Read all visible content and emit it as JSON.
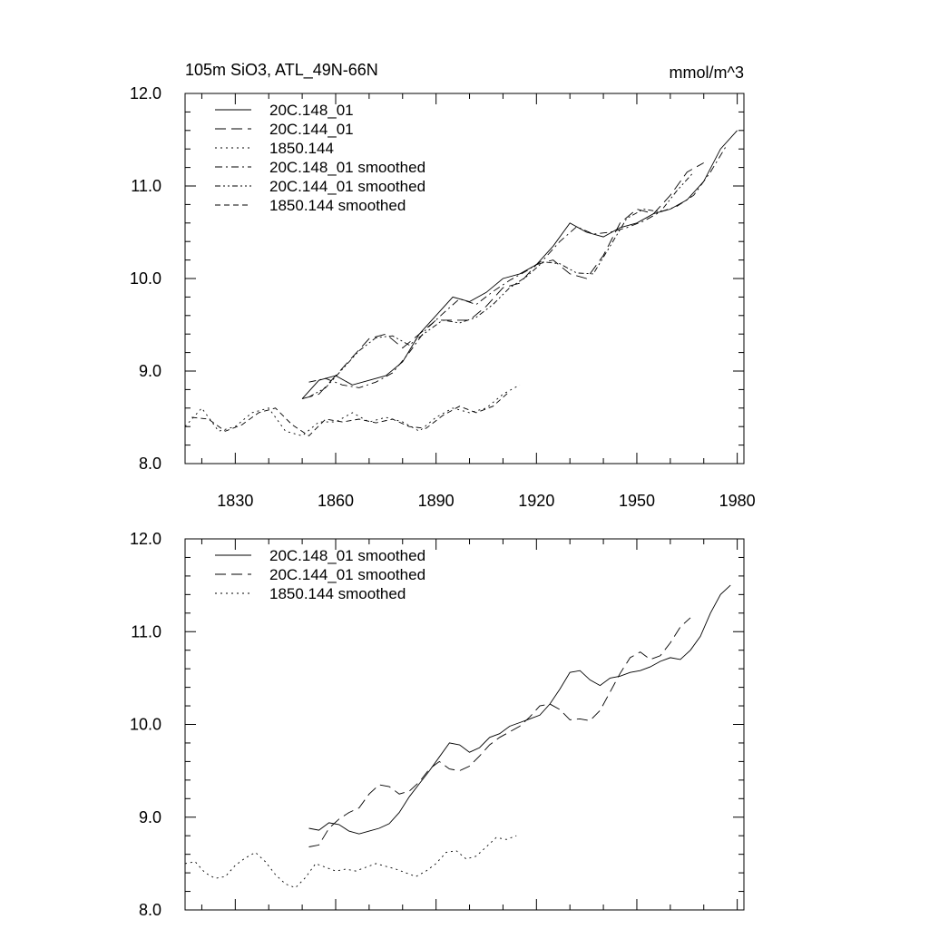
{
  "chart_data": [
    {
      "type": "line",
      "title": "105m SiO3, ATL_49N-66N",
      "units_label": "mmol/m^3",
      "xlabel": "",
      "ylabel": "",
      "xlim": [
        1815,
        1982
      ],
      "ylim": [
        8.0,
        12.0
      ],
      "xticks": [
        1830,
        1860,
        1890,
        1920,
        1950,
        1980
      ],
      "xtick_labels": [
        "1830",
        "1860",
        "1890",
        "1920",
        "1950",
        "1980"
      ],
      "yticks": [
        8.0,
        9.0,
        10.0,
        11.0,
        12.0
      ],
      "ytick_labels": [
        "8.0",
        "9.0",
        "10.0",
        "11.0",
        "12.0"
      ],
      "legend": [
        "20C.148_01",
        "20C.144_01",
        "1850.144",
        "20C.148_01 smoothed",
        "20C.144_01 smoothed",
        "1850.144 smoothed"
      ],
      "series": [
        {
          "name": "20C.148_01",
          "dash": "solid",
          "x": [
            1850,
            1855,
            1860,
            1865,
            1870,
            1875,
            1880,
            1885,
            1890,
            1895,
            1900,
            1905,
            1910,
            1915,
            1920,
            1925,
            1930,
            1935,
            1940,
            1945,
            1950,
            1955,
            1960,
            1965,
            1970,
            1975,
            1980
          ],
          "y": [
            8.7,
            8.9,
            8.95,
            8.85,
            8.9,
            8.95,
            9.1,
            9.4,
            9.6,
            9.8,
            9.75,
            9.85,
            10.0,
            10.05,
            10.15,
            10.35,
            10.6,
            10.5,
            10.45,
            10.55,
            10.6,
            10.7,
            10.75,
            10.85,
            11.05,
            11.4,
            11.6
          ]
        },
        {
          "name": "20C.144_01",
          "dash": "longdash",
          "x": [
            1850,
            1855,
            1860,
            1865,
            1870,
            1875,
            1880,
            1885,
            1890,
            1895,
            1900,
            1905,
            1910,
            1915,
            1920,
            1925,
            1930,
            1935,
            1940,
            1945,
            1950,
            1955,
            1960,
            1965,
            1970
          ],
          "y": [
            8.7,
            8.75,
            8.95,
            9.15,
            9.35,
            9.4,
            9.25,
            9.4,
            9.55,
            9.55,
            9.55,
            9.7,
            9.9,
            9.95,
            10.15,
            10.2,
            10.05,
            10.0,
            10.25,
            10.6,
            10.75,
            10.7,
            10.9,
            11.15,
            11.25
          ]
        },
        {
          "name": "1850.144",
          "dash": "dotted",
          "x": [
            1815,
            1820,
            1825,
            1830,
            1835,
            1840,
            1845,
            1850,
            1855,
            1860,
            1865,
            1870,
            1875,
            1880,
            1885,
            1890,
            1895,
            1900,
            1905,
            1910,
            1915
          ],
          "y": [
            8.4,
            8.6,
            8.35,
            8.4,
            8.55,
            8.6,
            8.35,
            8.3,
            8.45,
            8.45,
            8.55,
            8.45,
            8.5,
            8.45,
            8.35,
            8.5,
            8.6,
            8.55,
            8.6,
            8.75,
            8.85
          ]
        },
        {
          "name": "20C.148_01 smoothed",
          "dash": "dashdot",
          "x": [
            1852,
            1857,
            1862,
            1867,
            1872,
            1877,
            1882,
            1887,
            1892,
            1897,
            1902,
            1907,
            1912,
            1917,
            1922,
            1927,
            1932,
            1937,
            1942,
            1947,
            1952,
            1957,
            1962,
            1967,
            1972,
            1977
          ],
          "y": [
            8.88,
            8.92,
            8.85,
            8.82,
            8.88,
            8.98,
            9.2,
            9.45,
            9.62,
            9.78,
            9.72,
            9.86,
            9.98,
            10.08,
            10.2,
            10.4,
            10.56,
            10.48,
            10.5,
            10.55,
            10.62,
            10.72,
            10.78,
            10.9,
            11.15,
            11.45
          ]
        },
        {
          "name": "20C.144_01 smoothed",
          "dash": "dashdotdot",
          "x": [
            1852,
            1857,
            1862,
            1867,
            1872,
            1877,
            1882,
            1887,
            1892,
            1897,
            1902,
            1907,
            1912,
            1917,
            1922,
            1927,
            1932,
            1937,
            1942,
            1947,
            1952,
            1957,
            1962,
            1967
          ],
          "y": [
            8.72,
            8.82,
            9.02,
            9.22,
            9.36,
            9.38,
            9.28,
            9.42,
            9.55,
            9.52,
            9.58,
            9.72,
            9.9,
            10.02,
            10.18,
            10.16,
            10.06,
            10.05,
            10.35,
            10.65,
            10.75,
            10.72,
            10.95,
            11.15
          ]
        },
        {
          "name": "1850.144 smoothed",
          "dash": "medium",
          "x": [
            1817,
            1822,
            1827,
            1832,
            1837,
            1842,
            1847,
            1852,
            1857,
            1862,
            1867,
            1872,
            1877,
            1882,
            1887,
            1892,
            1897,
            1902,
            1907,
            1912
          ],
          "y": [
            8.5,
            8.48,
            8.35,
            8.42,
            8.55,
            8.6,
            8.42,
            8.3,
            8.48,
            8.45,
            8.48,
            8.44,
            8.48,
            8.4,
            8.38,
            8.52,
            8.62,
            8.55,
            8.62,
            8.78
          ]
        }
      ]
    },
    {
      "type": "line",
      "title": "",
      "xlabel": "",
      "ylabel": "",
      "xlim": [
        1815,
        1982
      ],
      "ylim": [
        8.0,
        12.0
      ],
      "xticks": [
        1830,
        1860,
        1890,
        1920,
        1950,
        1980
      ],
      "yticks": [
        8.0,
        9.0,
        10.0,
        11.0,
        12.0
      ],
      "ytick_labels": [
        "8.0",
        "9.0",
        "10.0",
        "11.0",
        "12.0"
      ],
      "legend": [
        "20C.148_01 smoothed",
        "20C.144_01 smoothed",
        "1850.144 smoothed"
      ],
      "series": [
        {
          "name": "20C.148_01 smoothed",
          "dash": "solid",
          "x": [
            1852,
            1855,
            1858,
            1861,
            1864,
            1867,
            1870,
            1873,
            1876,
            1879,
            1882,
            1885,
            1888,
            1891,
            1894,
            1897,
            1900,
            1903,
            1906,
            1909,
            1912,
            1915,
            1918,
            1921,
            1924,
            1927,
            1930,
            1933,
            1936,
            1939,
            1942,
            1945,
            1948,
            1951,
            1954,
            1957,
            1960,
            1963,
            1966,
            1969,
            1972,
            1975,
            1978
          ],
          "y": [
            8.88,
            8.86,
            8.94,
            8.92,
            8.85,
            8.82,
            8.85,
            8.88,
            8.93,
            9.05,
            9.22,
            9.36,
            9.5,
            9.65,
            9.8,
            9.78,
            9.7,
            9.75,
            9.86,
            9.9,
            9.98,
            10.02,
            10.06,
            10.1,
            10.22,
            10.38,
            10.56,
            10.58,
            10.48,
            10.42,
            10.5,
            10.52,
            10.56,
            10.58,
            10.62,
            10.68,
            10.72,
            10.7,
            10.8,
            10.95,
            11.2,
            11.4,
            11.5
          ]
        },
        {
          "name": "20C.144_01 smoothed",
          "dash": "longdash",
          "x": [
            1852,
            1855,
            1858,
            1861,
            1864,
            1867,
            1870,
            1873,
            1876,
            1879,
            1882,
            1885,
            1888,
            1891,
            1894,
            1897,
            1900,
            1903,
            1906,
            1909,
            1912,
            1915,
            1918,
            1921,
            1924,
            1927,
            1930,
            1933,
            1936,
            1939,
            1942,
            1945,
            1948,
            1951,
            1954,
            1957,
            1960,
            1963,
            1966
          ],
          "y": [
            8.68,
            8.7,
            8.88,
            8.98,
            9.05,
            9.1,
            9.25,
            9.35,
            9.33,
            9.25,
            9.28,
            9.38,
            9.52,
            9.6,
            9.52,
            9.5,
            9.55,
            9.66,
            9.78,
            9.86,
            9.92,
            9.98,
            10.08,
            10.2,
            10.22,
            10.16,
            10.05,
            10.06,
            10.04,
            10.15,
            10.35,
            10.55,
            10.72,
            10.78,
            10.7,
            10.74,
            10.88,
            11.05,
            11.15
          ]
        },
        {
          "name": "1850.144 smoothed",
          "dash": "dotted",
          "x": [
            1815,
            1818,
            1821,
            1824,
            1827,
            1830,
            1833,
            1836,
            1839,
            1842,
            1845,
            1848,
            1851,
            1854,
            1857,
            1860,
            1863,
            1866,
            1869,
            1872,
            1875,
            1878,
            1881,
            1884,
            1887,
            1890,
            1893,
            1896,
            1899,
            1902,
            1905,
            1908,
            1911,
            1914
          ],
          "y": [
            8.5,
            8.52,
            8.4,
            8.34,
            8.36,
            8.48,
            8.56,
            8.62,
            8.52,
            8.38,
            8.28,
            8.24,
            8.35,
            8.5,
            8.46,
            8.42,
            8.44,
            8.42,
            8.46,
            8.5,
            8.47,
            8.44,
            8.4,
            8.36,
            8.42,
            8.5,
            8.62,
            8.64,
            8.55,
            8.58,
            8.68,
            8.78,
            8.76,
            8.8
          ]
        }
      ]
    }
  ]
}
